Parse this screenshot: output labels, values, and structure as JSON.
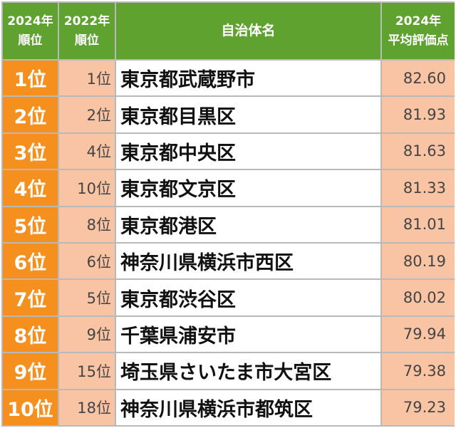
{
  "header": {
    "rank_2024_line1": "2024年",
    "rank_2024_line2": "順位",
    "rank_2022_line1": "2022年",
    "rank_2022_line2": "順位",
    "name": "自治体名",
    "score_line1": "2024年",
    "score_line2": "平均評価点"
  },
  "rows": [
    {
      "rank": "1位",
      "prev": "1位",
      "name": "東京都武蔵野市",
      "score": "82.60"
    },
    {
      "rank": "2位",
      "prev": "2位",
      "name": "東京都目黒区",
      "score": "81.93"
    },
    {
      "rank": "3位",
      "prev": "4位",
      "name": "東京都中央区",
      "score": "81.63"
    },
    {
      "rank": "4位",
      "prev": "10位",
      "name": "東京都文京区",
      "score": "81.33"
    },
    {
      "rank": "5位",
      "prev": "8位",
      "name": "東京都港区",
      "score": "81.01"
    },
    {
      "rank": "6位",
      "prev": "6位",
      "name": "神奈川県横浜市西区",
      "score": "80.19"
    },
    {
      "rank": "7位",
      "prev": "5位",
      "name": "東京都渋谷区",
      "score": "80.02"
    },
    {
      "rank": "8位",
      "prev": "9位",
      "name": "千葉県浦安市",
      "score": "79.94"
    },
    {
      "rank": "9位",
      "prev": "15位",
      "name": "埼玉県さいたま市大宮区",
      "score": "79.38"
    },
    {
      "rank": "10位",
      "prev": "18位",
      "name": "神奈川県横浜市都筑区",
      "score": "79.23"
    }
  ],
  "colors": {
    "header_bg": "#5fa22f",
    "rank_bg": "#f5901f",
    "peach_bg": "#f8c4a4",
    "grid": "#b9b9b9"
  }
}
